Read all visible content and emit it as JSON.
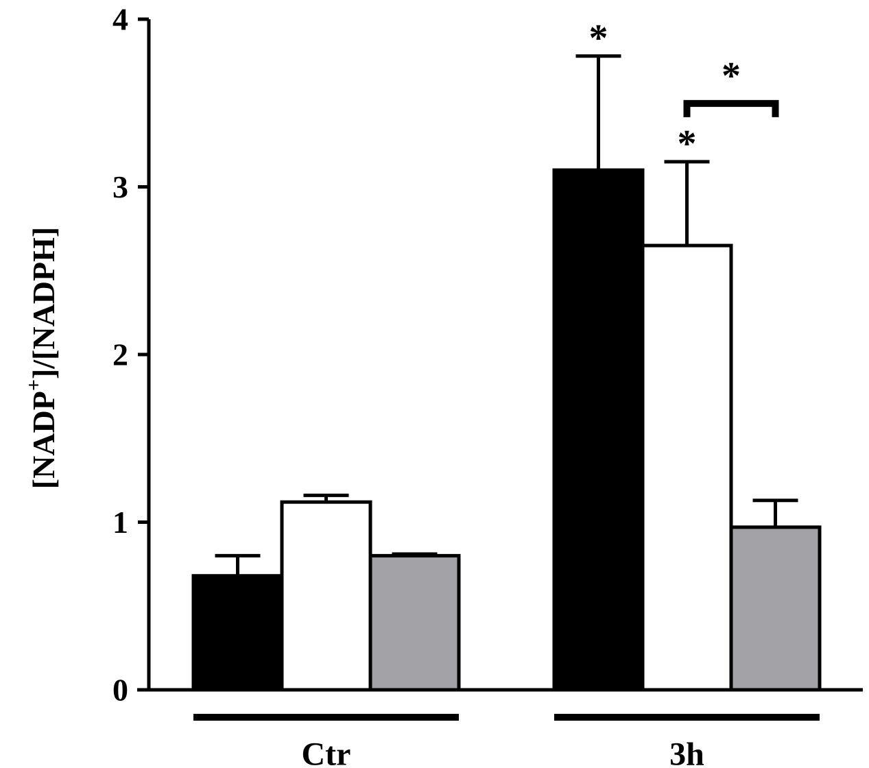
{
  "chart_data": {
    "type": "bar",
    "title": "",
    "xlabel": "",
    "ylabel": {
      "prefix": "[NADP",
      "superscript": "+",
      "suffix": "]/[NADPH]"
    },
    "ylim": [
      0,
      4
    ],
    "yticks": [
      "0",
      "1",
      "2",
      "3",
      "4"
    ],
    "categories": [
      "Ctr",
      "3h"
    ],
    "series": [
      {
        "color": "#000000",
        "values": [
          0.68,
          3.1
        ],
        "errors": [
          0.12,
          0.68
        ]
      },
      {
        "color": "#ffffff",
        "values": [
          1.12,
          2.65
        ],
        "errors": [
          0.04,
          0.5
        ]
      },
      {
        "color": "#a3a2a7",
        "values": [
          0.8,
          0.97
        ],
        "errors": [
          0.01,
          0.16
        ]
      }
    ],
    "annotations": [
      {
        "text": "*",
        "category": "3h",
        "series": 0
      },
      {
        "text": "*",
        "category": "3h",
        "series": 1
      },
      {
        "text": "*",
        "category": "3h",
        "between_series": [
          1,
          2
        ]
      }
    ],
    "grid": false,
    "legend": "none"
  }
}
